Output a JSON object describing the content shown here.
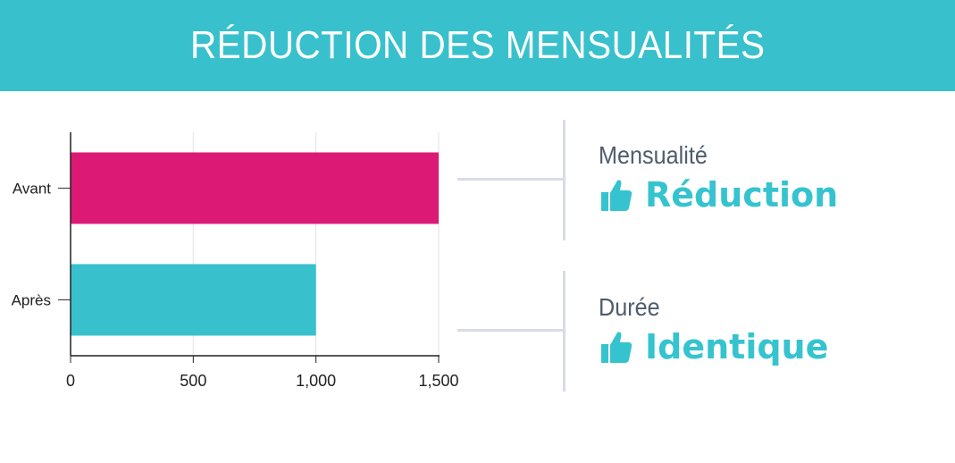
{
  "header": {
    "title": "RÉDUCTION DES MENSUALITÉS"
  },
  "colors": {
    "banner": "#38c1cc",
    "avant": "#dc1a75",
    "apres": "#38c1cc",
    "accent": "#35c4cf"
  },
  "chart_data": {
    "type": "bar",
    "orientation": "horizontal",
    "categories": [
      "Avant",
      "Après"
    ],
    "values": [
      1500,
      1000
    ],
    "bar_colors": [
      "#dc1a75",
      "#38c1cc"
    ],
    "xlim": [
      0,
      1500
    ],
    "xticks": [
      0,
      500,
      1000,
      1500
    ],
    "xtick_labels": [
      "0",
      "500",
      "1,000",
      "1,500"
    ],
    "grid": true
  },
  "panels": [
    {
      "label": "Mensualité",
      "value": "Réduction",
      "icon": "thumbs-up-icon"
    },
    {
      "label": "Durée",
      "value": "Identique",
      "icon": "thumbs-up-icon"
    }
  ]
}
